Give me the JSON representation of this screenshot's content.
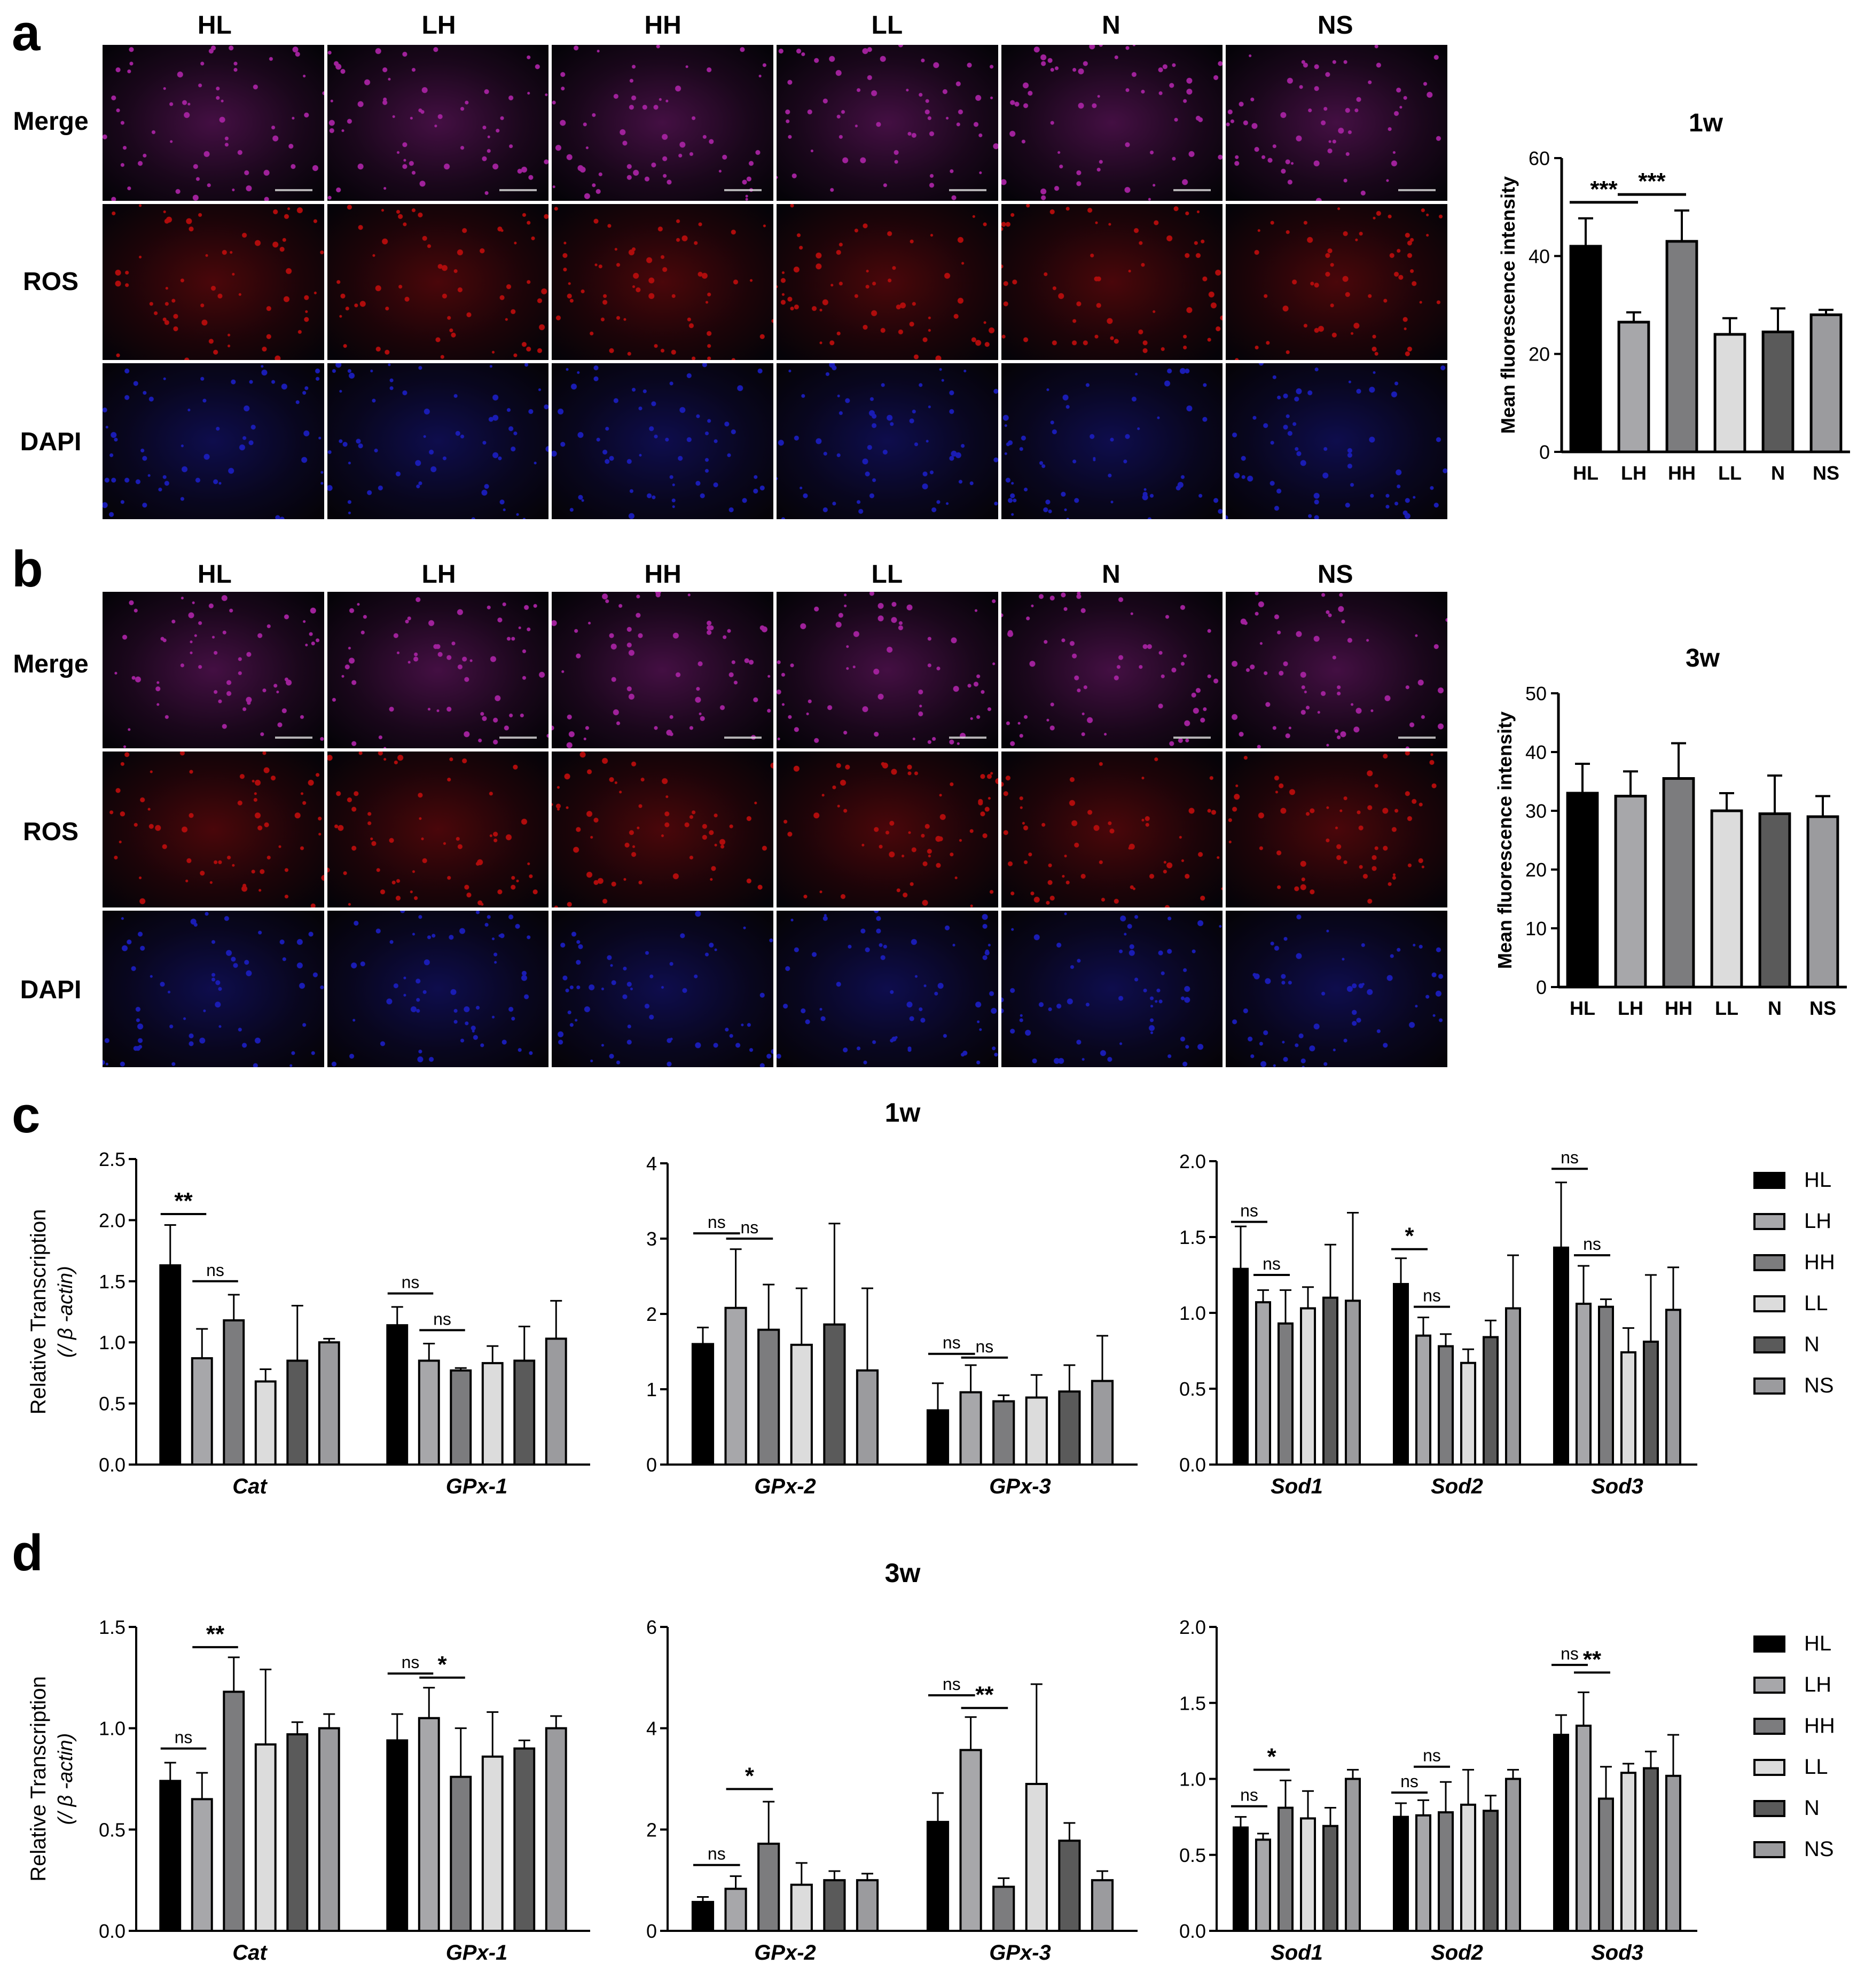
{
  "panels": {
    "a": {
      "letter": "a",
      "columns": [
        "HL",
        "LH",
        "HH",
        "LL",
        "N",
        "NS"
      ],
      "rows": [
        "Merge",
        "ROS",
        "DAPI"
      ]
    },
    "b": {
      "letter": "b",
      "columns": [
        "HL",
        "LH",
        "HH",
        "LL",
        "N",
        "NS"
      ],
      "rows": [
        "Merge",
        "ROS",
        "DAPI"
      ]
    },
    "c": {
      "letter": "c",
      "time_label": "1w"
    },
    "d": {
      "letter": "d",
      "time_label": "3w"
    }
  },
  "colors": {
    "merge": "#a0219b",
    "ros": "#b00c0c",
    "dapi": "#1a1cb4",
    "HL": "#000000",
    "LH": "#a7a7aa",
    "HH": "#7c7c7e",
    "LL": "#dcdcdc",
    "N": "#5a5a5a",
    "NS": "#9b9b9e"
  },
  "legend": [
    "HL",
    "LH",
    "HH",
    "LL",
    "N",
    "NS"
  ],
  "chart_data": [
    {
      "id": "a-bar",
      "type": "bar",
      "title": "1w",
      "ylabel": "Mean fluorescence intensity",
      "categories": [
        "HL",
        "LH",
        "HH",
        "LL",
        "N",
        "NS"
      ],
      "values": [
        42,
        26.5,
        43,
        24,
        24.5,
        28
      ],
      "errors": [
        5.7,
        2,
        6.3,
        3.3,
        4.8,
        1
      ],
      "ylim": [
        0,
        60
      ],
      "yticks": [
        0,
        20,
        40,
        60
      ],
      "annotations": [
        {
          "from": "HL",
          "to": "LH",
          "text": "***"
        },
        {
          "from": "LH",
          "to": "HH",
          "text": "***"
        }
      ]
    },
    {
      "id": "b-bar",
      "type": "bar",
      "title": "3w",
      "ylabel": "Mean fluorescence intensity",
      "categories": [
        "HL",
        "LH",
        "HH",
        "LL",
        "N",
        "NS"
      ],
      "values": [
        33,
        32.5,
        35.5,
        30,
        29.5,
        29
      ],
      "errors": [
        5,
        4.2,
        6,
        3,
        6.5,
        3.5
      ],
      "ylim": [
        0,
        50
      ],
      "yticks": [
        0,
        10,
        20,
        30,
        40,
        50
      ],
      "annotations": []
    },
    {
      "id": "c-1",
      "type": "bar",
      "ylabel": "Relative Transcription",
      "ylabel2": "(/ β -actin)",
      "groups": [
        "Cat",
        "GPx-1"
      ],
      "series_order": [
        "HL",
        "LH",
        "HH",
        "LL",
        "N",
        "NS"
      ],
      "values": [
        [
          1.63,
          0.87,
          1.18,
          0.68,
          0.85,
          1.0
        ],
        [
          1.14,
          0.85,
          0.77,
          0.83,
          0.85,
          1.03
        ]
      ],
      "errors": [
        [
          0.33,
          0.24,
          0.21,
          0.1,
          0.45,
          0.03
        ],
        [
          0.15,
          0.14,
          0.02,
          0.14,
          0.28,
          0.31
        ]
      ],
      "ylim": [
        0,
        2.5
      ],
      "yticks": [
        "0.0",
        "0.5",
        "1.0",
        "1.5",
        "2.0",
        "2.5"
      ],
      "annotations": [
        {
          "g": 0,
          "from": 0,
          "to": 1,
          "y": 2.05,
          "text": "**"
        },
        {
          "g": 0,
          "from": 1,
          "to": 2,
          "y": 1.5,
          "text": "ns"
        },
        {
          "g": 1,
          "from": 0,
          "to": 1,
          "y": 1.4,
          "text": "ns"
        },
        {
          "g": 1,
          "from": 1,
          "to": 2,
          "y": 1.1,
          "text": "ns"
        }
      ]
    },
    {
      "id": "c-2",
      "type": "bar",
      "groups": [
        "GPx-2",
        "GPx-3"
      ],
      "series_order": [
        "HL",
        "LH",
        "HH",
        "LL",
        "N",
        "NS"
      ],
      "values": [
        [
          1.6,
          2.08,
          1.79,
          1.59,
          1.86,
          1.25
        ],
        [
          0.72,
          0.96,
          0.84,
          0.89,
          0.97,
          1.11
        ]
      ],
      "errors": [
        [
          0.22,
          0.78,
          0.6,
          0.75,
          1.34,
          1.09
        ],
        [
          0.36,
          0.36,
          0.08,
          0.3,
          0.35,
          0.6
        ]
      ],
      "ylim": [
        0,
        4
      ],
      "yticks": [
        "0",
        "1",
        "2",
        "3",
        "4"
      ],
      "annotations": [
        {
          "g": 0,
          "from": 0,
          "to": 1,
          "y": 3.07,
          "text": "ns"
        },
        {
          "g": 0,
          "from": 1,
          "to": 2,
          "y": 3.0,
          "text": "ns"
        },
        {
          "g": 1,
          "from": 0,
          "to": 1,
          "y": 1.47,
          "text": "ns"
        },
        {
          "g": 1,
          "from": 1,
          "to": 2,
          "y": 1.42,
          "text": "ns"
        }
      ]
    },
    {
      "id": "c-3",
      "type": "bar",
      "groups": [
        "Sod1",
        "Sod2",
        "Sod3"
      ],
      "series_order": [
        "HL",
        "LH",
        "HH",
        "LL",
        "N",
        "NS"
      ],
      "values": [
        [
          1.29,
          1.07,
          0.93,
          1.03,
          1.1,
          1.08
        ],
        [
          1.19,
          0.85,
          0.78,
          0.67,
          0.84,
          1.03
        ],
        [
          1.43,
          1.06,
          1.04,
          0.74,
          0.81,
          1.02
        ]
      ],
      "errors": [
        [
          0.28,
          0.08,
          0.22,
          0.14,
          0.35,
          0.58
        ],
        [
          0.17,
          0.12,
          0.08,
          0.09,
          0.11,
          0.35
        ],
        [
          0.43,
          0.25,
          0.05,
          0.16,
          0.44,
          0.28
        ]
      ],
      "ylim": [
        0,
        2.0
      ],
      "yticks": [
        "0.0",
        "0.5",
        "1.0",
        "1.5",
        "2.0"
      ],
      "annotations": [
        {
          "g": 0,
          "from": 0,
          "to": 1,
          "y": 1.6,
          "text": "ns"
        },
        {
          "g": 0,
          "from": 1,
          "to": 2,
          "y": 1.25,
          "text": "ns"
        },
        {
          "g": 1,
          "from": 0,
          "to": 1,
          "y": 1.42,
          "text": "*"
        },
        {
          "g": 1,
          "from": 1,
          "to": 2,
          "y": 1.04,
          "text": "ns"
        },
        {
          "g": 2,
          "from": 0,
          "to": 1,
          "y": 1.95,
          "text": "ns"
        },
        {
          "g": 2,
          "from": 1,
          "to": 2,
          "y": 1.38,
          "text": "ns"
        }
      ]
    },
    {
      "id": "d-1",
      "type": "bar",
      "ylabel": "Relative Transcription",
      "ylabel2": "(/ β -actin)",
      "groups": [
        "Cat",
        "GPx-1"
      ],
      "series_order": [
        "HL",
        "LH",
        "HH",
        "LL",
        "N",
        "NS"
      ],
      "values": [
        [
          0.74,
          0.65,
          1.18,
          0.92,
          0.97,
          1.0
        ],
        [
          0.94,
          1.05,
          0.76,
          0.86,
          0.9,
          1.0
        ]
      ],
      "errors": [
        [
          0.09,
          0.13,
          0.17,
          0.37,
          0.06,
          0.07
        ],
        [
          0.13,
          0.15,
          0.24,
          0.22,
          0.04,
          0.06
        ]
      ],
      "ylim": [
        0,
        1.5
      ],
      "yticks": [
        "0.0",
        "0.5",
        "1.0",
        "1.5"
      ],
      "annotations": [
        {
          "g": 0,
          "from": 0,
          "to": 1,
          "y": 0.9,
          "text": "ns"
        },
        {
          "g": 0,
          "from": 1,
          "to": 2,
          "y": 1.4,
          "text": "**"
        },
        {
          "g": 1,
          "from": 0,
          "to": 1,
          "y": 1.27,
          "text": "ns"
        },
        {
          "g": 1,
          "from": 1,
          "to": 2,
          "y": 1.25,
          "text": "*"
        }
      ]
    },
    {
      "id": "d-2",
      "type": "bar",
      "groups": [
        "GPx-2",
        "GPx-3"
      ],
      "series_order": [
        "HL",
        "LH",
        "HH",
        "LL",
        "N",
        "NS"
      ],
      "values": [
        [
          0.57,
          0.83,
          1.72,
          0.91,
          1.0,
          1.0
        ],
        [
          2.15,
          3.57,
          0.87,
          2.9,
          1.78,
          1.0
        ]
      ],
      "errors": [
        [
          0.1,
          0.25,
          0.83,
          0.43,
          0.18,
          0.13
        ],
        [
          0.57,
          0.65,
          0.17,
          1.97,
          0.35,
          0.18
        ]
      ],
      "ylim": [
        0,
        6
      ],
      "yticks": [
        "0",
        "2",
        "4",
        "6"
      ],
      "annotations": [
        {
          "g": 0,
          "from": 0,
          "to": 1,
          "y": 1.3,
          "text": "ns"
        },
        {
          "g": 0,
          "from": 1,
          "to": 2,
          "y": 2.8,
          "text": "*"
        },
        {
          "g": 1,
          "from": 0,
          "to": 1,
          "y": 4.65,
          "text": "ns"
        },
        {
          "g": 1,
          "from": 1,
          "to": 2,
          "y": 4.4,
          "text": "**"
        }
      ]
    },
    {
      "id": "d-3",
      "type": "bar",
      "groups": [
        "Sod1",
        "Sod2",
        "Sod3"
      ],
      "series_order": [
        "HL",
        "LH",
        "HH",
        "LL",
        "N",
        "NS"
      ],
      "values": [
        [
          0.68,
          0.6,
          0.81,
          0.74,
          0.69,
          1.0
        ],
        [
          0.75,
          0.76,
          0.78,
          0.83,
          0.79,
          1.0
        ],
        [
          1.29,
          1.35,
          0.87,
          1.04,
          1.07,
          1.02
        ]
      ],
      "errors": [
        [
          0.07,
          0.04,
          0.18,
          0.18,
          0.12,
          0.06
        ],
        [
          0.09,
          0.1,
          0.2,
          0.23,
          0.1,
          0.06
        ],
        [
          0.13,
          0.22,
          0.21,
          0.06,
          0.11,
          0.27
        ]
      ],
      "ylim": [
        0,
        2.0
      ],
      "yticks": [
        "0.0",
        "0.5",
        "1.0",
        "1.5",
        "2.0"
      ],
      "annotations": [
        {
          "g": 0,
          "from": 0,
          "to": 1,
          "y": 0.82,
          "text": "ns"
        },
        {
          "g": 0,
          "from": 1,
          "to": 2,
          "y": 1.06,
          "text": "*"
        },
        {
          "g": 1,
          "from": 0,
          "to": 1,
          "y": 0.91,
          "text": "ns"
        },
        {
          "g": 1,
          "from": 1,
          "to": 2,
          "y": 1.08,
          "text": "ns"
        },
        {
          "g": 2,
          "from": 0,
          "to": 1,
          "y": 1.75,
          "text": "ns"
        },
        {
          "g": 2,
          "from": 1,
          "to": 2,
          "y": 1.7,
          "text": "**"
        }
      ]
    }
  ]
}
